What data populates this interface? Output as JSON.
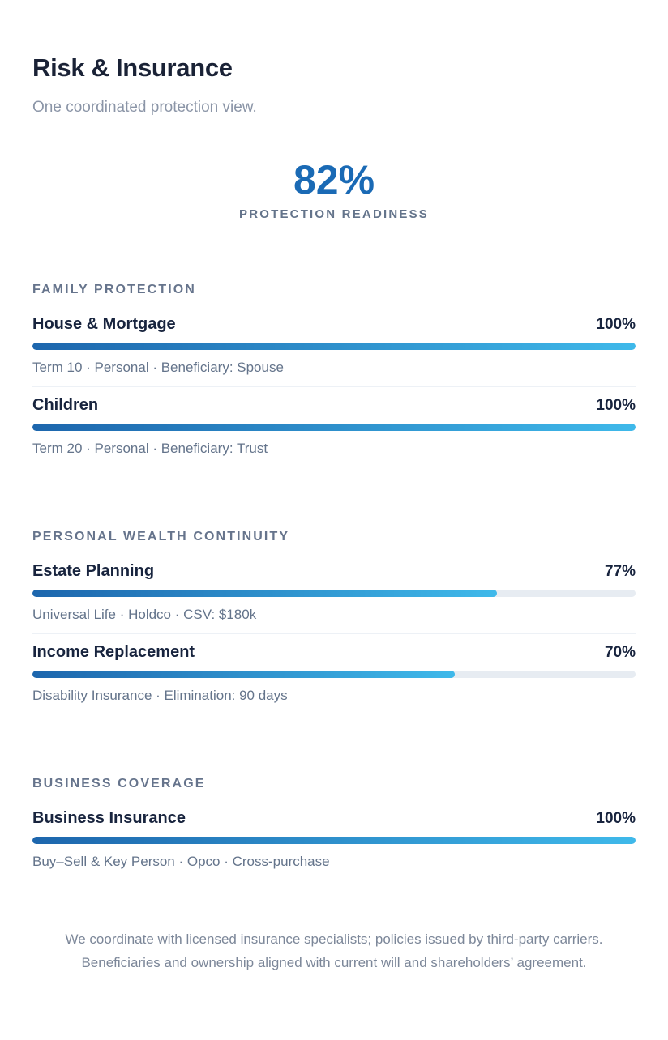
{
  "page": {
    "title": "Risk & Insurance",
    "subtitle": "One coordinated protection view."
  },
  "hero": {
    "score": "82%",
    "label": "PROTECTION READINESS"
  },
  "sections": [
    {
      "heading": "FAMILY PROTECTION",
      "rows": [
        {
          "title": "House & Mortgage",
          "percent": "100%",
          "value": 100,
          "detail": "Term 10 · Personal · Beneficiary: Spouse"
        },
        {
          "title": "Children",
          "percent": "100%",
          "value": 100,
          "detail": "Term 20 · Personal · Beneficiary: Trust"
        }
      ]
    },
    {
      "heading": "PERSONAL WEALTH CONTINUITY",
      "rows": [
        {
          "title": "Estate Planning",
          "percent": "77%",
          "value": 77,
          "detail": "Universal Life · Holdco · CSV: $180k"
        },
        {
          "title": "Income Replacement",
          "percent": "70%",
          "value": 70,
          "detail": "Disability Insurance · Elimination: 90 days"
        }
      ]
    },
    {
      "heading": "BUSINESS COVERAGE",
      "rows": [
        {
          "title": "Business Insurance",
          "percent": "100%",
          "value": 100,
          "detail": "Buy–Sell & Key Person · Opco · Cross-purchase"
        }
      ]
    }
  ],
  "footer": {
    "line1": "We coordinate with licensed insurance specialists; policies issued by third-party carriers.",
    "line2": "Beneficiaries and ownership aligned with current will and shareholders’ agreement."
  },
  "colors": {
    "accent_blue": "#1a6ab5",
    "bar_gradient_start": "#1d66ad",
    "bar_gradient_end": "#3fb9ea",
    "bar_track": "#e7ecf2",
    "heading_ink": "#1a2236",
    "muted_text": "#64748b"
  }
}
